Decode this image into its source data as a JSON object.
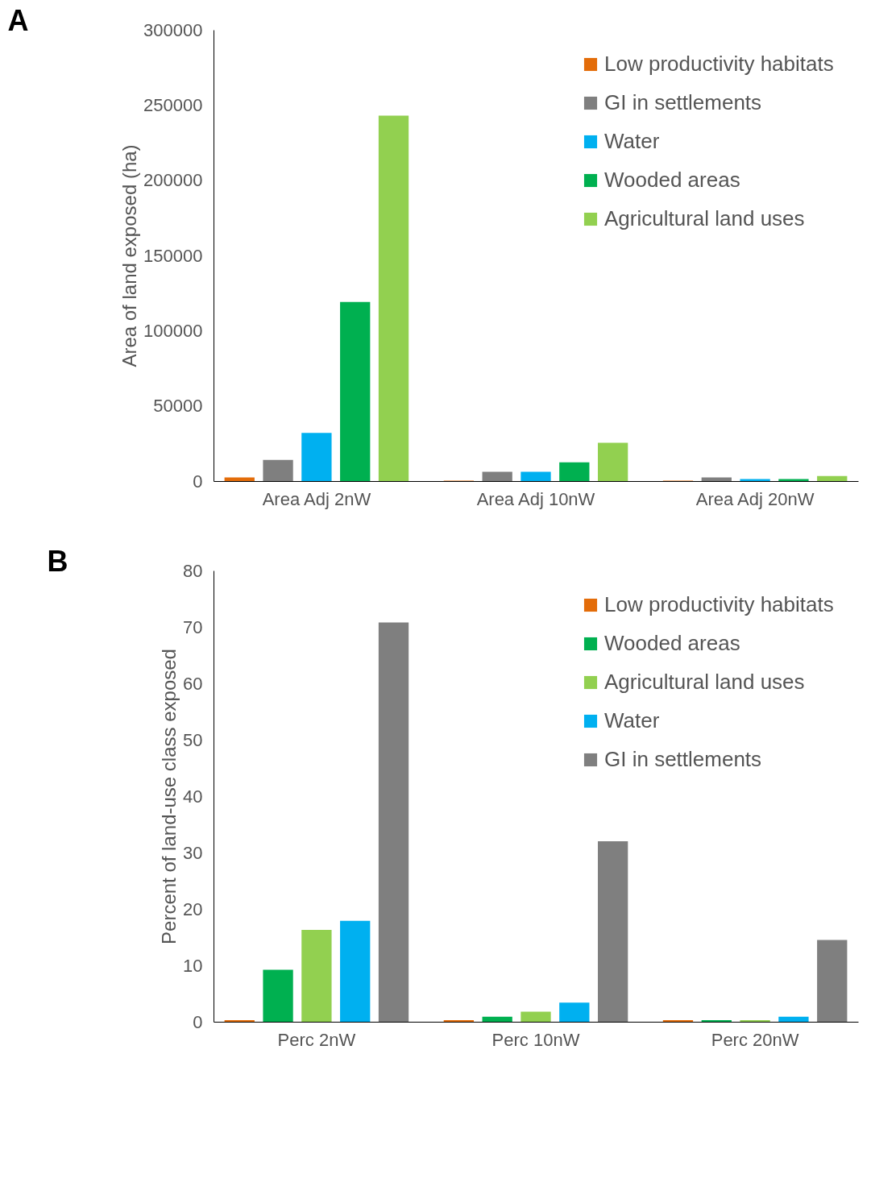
{
  "chart_data": [
    {
      "type": "bar",
      "title": "A",
      "ylabel": "Area of land exposed (ha)",
      "categories": [
        "Area Adj 2nW",
        "Area Adj 10nW",
        "Area Adj 20nW"
      ],
      "series": [
        {
          "name": "Low productivity habitats",
          "color": "#e36c09",
          "values": [
            2400,
            300,
            300
          ]
        },
        {
          "name": "GI in settlements",
          "color": "#7f7f7f",
          "values": [
            14000,
            6200,
            2400
          ]
        },
        {
          "name": "Water",
          "color": "#00b0f0",
          "values": [
            32000,
            6200,
            1400
          ]
        },
        {
          "name": "Wooded areas",
          "color": "#00b050",
          "values": [
            119000,
            12500,
            1400
          ]
        },
        {
          "name": "Agricultural land uses",
          "color": "#92d050",
          "values": [
            243000,
            25400,
            3400
          ]
        }
      ],
      "ylim": [
        0,
        300000
      ],
      "yticks": [
        0,
        50000,
        100000,
        150000,
        200000,
        250000,
        300000
      ],
      "grid": false,
      "legend": "top right"
    },
    {
      "type": "bar",
      "title": "B",
      "ylabel": "Percent of land-use class exposed",
      "categories": [
        "Perc 2nW",
        "Perc 10nW",
        "Perc 20nW"
      ],
      "series": [
        {
          "name": "Low productivity habitats",
          "color": "#e36c09",
          "values": [
            0.3,
            0.3,
            0.3
          ]
        },
        {
          "name": "Wooded areas",
          "color": "#00b050",
          "values": [
            9.2,
            0.9,
            0.3
          ]
        },
        {
          "name": "Agricultural land uses",
          "color": "#92d050",
          "values": [
            16.3,
            1.8,
            0.3
          ]
        },
        {
          "name": "Water",
          "color": "#00b0f0",
          "values": [
            17.9,
            3.4,
            0.9
          ]
        },
        {
          "name": "GI in settlements",
          "color": "#7f7f7f",
          "values": [
            70.8,
            32.0,
            14.5
          ]
        }
      ],
      "ylim": [
        0,
        80
      ],
      "yticks": [
        0,
        10,
        20,
        30,
        40,
        50,
        60,
        70,
        80
      ],
      "grid": false,
      "legend": "top right"
    }
  ]
}
